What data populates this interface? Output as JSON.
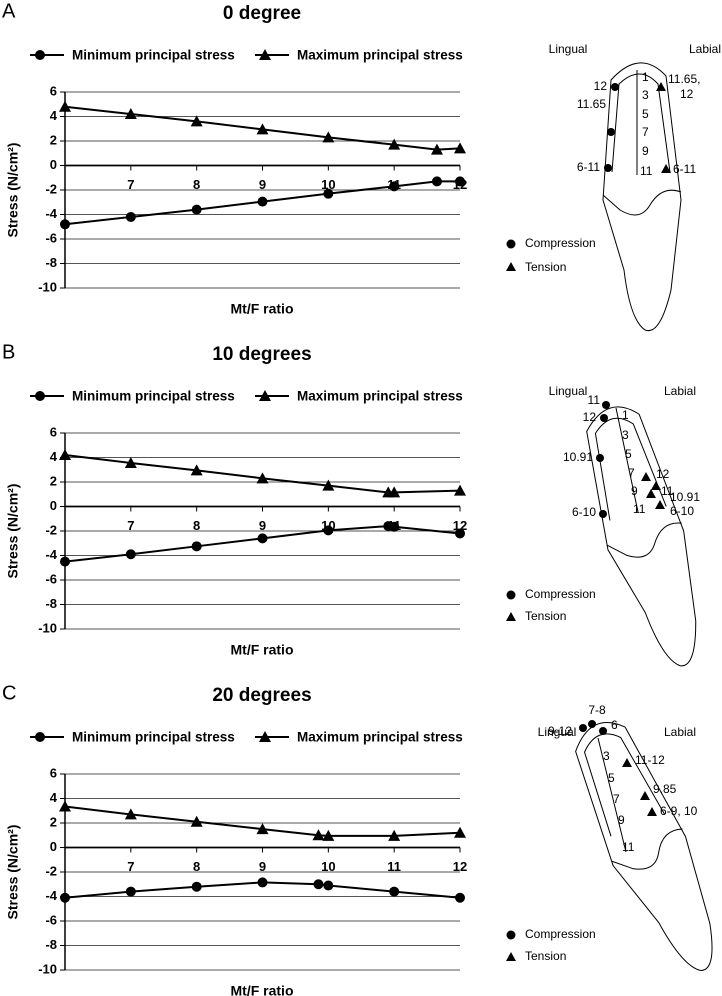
{
  "chart_data": [
    {
      "type": "line",
      "panel_label": "A",
      "title": "0 degree",
      "x_label": "Mt/F ratio",
      "y_label": "Stress (N/cm²)",
      "x": [
        6,
        7,
        8,
        9,
        10,
        11,
        11.65,
        12
      ],
      "series": [
        {
          "name": "Minimum principal stress",
          "color": "#000000",
          "marker": "circle",
          "values": [
            -4.8,
            -4.2,
            -3.6,
            -2.95,
            -2.3,
            -1.7,
            -1.3,
            -1.3
          ]
        },
        {
          "name": "Maximum principal stress",
          "color": "#000000",
          "marker": "triangle",
          "values": [
            4.8,
            4.2,
            3.6,
            2.95,
            2.3,
            1.7,
            1.3,
            1.4
          ]
        }
      ],
      "xlim": [
        6,
        12
      ],
      "xticks": [
        7,
        8,
        9,
        10,
        11,
        12
      ],
      "ylim": [
        -10,
        6
      ],
      "yticks": [
        -10,
        -8,
        -6,
        -4,
        -2,
        0,
        2,
        4,
        6
      ],
      "grid": true
    },
    {
      "type": "line",
      "panel_label": "B",
      "title": "10 degrees",
      "x_label": "Mt/F ratio",
      "y_label": "Stress (N/cm²)",
      "x": [
        6,
        7,
        8,
        9,
        10,
        10.91,
        11,
        12
      ],
      "series": [
        {
          "name": "Minimum principal stress",
          "color": "#000000",
          "marker": "circle",
          "values": [
            -4.5,
            -3.9,
            -3.25,
            -2.6,
            -1.95,
            -1.6,
            -1.65,
            -2.2
          ]
        },
        {
          "name": "Maximum principal stress",
          "color": "#000000",
          "marker": "triangle",
          "values": [
            4.2,
            3.55,
            2.95,
            2.3,
            1.7,
            1.15,
            1.15,
            1.3
          ]
        }
      ],
      "xlim": [
        6,
        12
      ],
      "xticks": [
        7,
        8,
        9,
        10,
        11,
        12
      ],
      "ylim": [
        -10,
        6
      ],
      "yticks": [
        -10,
        -8,
        -6,
        -4,
        -2,
        0,
        2,
        4,
        6
      ],
      "grid": true
    },
    {
      "type": "line",
      "panel_label": "C",
      "title": "20 degrees",
      "x_label": "Mt/F ratio",
      "y_label": "Stress (N/cm²)",
      "x": [
        6,
        7,
        8,
        9,
        9.85,
        10,
        11,
        12
      ],
      "series": [
        {
          "name": "Minimum principal stress",
          "color": "#000000",
          "marker": "circle",
          "values": [
            -4.1,
            -3.6,
            -3.2,
            -2.85,
            -3.0,
            -3.1,
            -3.6,
            -4.1
          ]
        },
        {
          "name": "Maximum principal stress",
          "color": "#000000",
          "marker": "triangle",
          "values": [
            3.35,
            2.7,
            2.1,
            1.5,
            1.0,
            0.95,
            0.95,
            1.2
          ]
        }
      ],
      "xlim": [
        6,
        12
      ],
      "xticks": [
        7,
        8,
        9,
        10,
        11,
        12
      ],
      "ylim": [
        -10,
        6
      ],
      "yticks": [
        -10,
        -8,
        -6,
        -4,
        -2,
        0,
        2,
        4,
        6
      ],
      "grid": true
    }
  ],
  "diagrams": [
    {
      "lingual": "Lingual",
      "labial": "Labial",
      "scale": [
        1,
        3,
        5,
        7,
        9,
        11
      ],
      "compression_labels": [
        "12",
        "11.65",
        "6-11"
      ],
      "tension_labels": [
        "11.65,",
        "12",
        "6-11"
      ],
      "legend": [
        "Compression",
        "Tension"
      ]
    },
    {
      "lingual": "Lingual",
      "labial": "Labial",
      "scale": [
        1,
        3,
        5,
        7,
        9,
        11
      ],
      "compression_labels": [
        "11",
        "12",
        "10.91",
        "6-10"
      ],
      "tension_labels": [
        "12",
        "11",
        "10.91",
        "6-10"
      ],
      "legend": [
        "Compression",
        "Tension"
      ]
    },
    {
      "lingual": "Lingual",
      "labial": "Labial",
      "scale": [
        3,
        5,
        7,
        9,
        11
      ],
      "compression_labels": [
        "7-8",
        "9-12",
        "6"
      ],
      "tension_labels": [
        "11-12",
        "9.85",
        "6-9, 10"
      ],
      "legend": [
        "Compression",
        "Tension"
      ]
    }
  ]
}
